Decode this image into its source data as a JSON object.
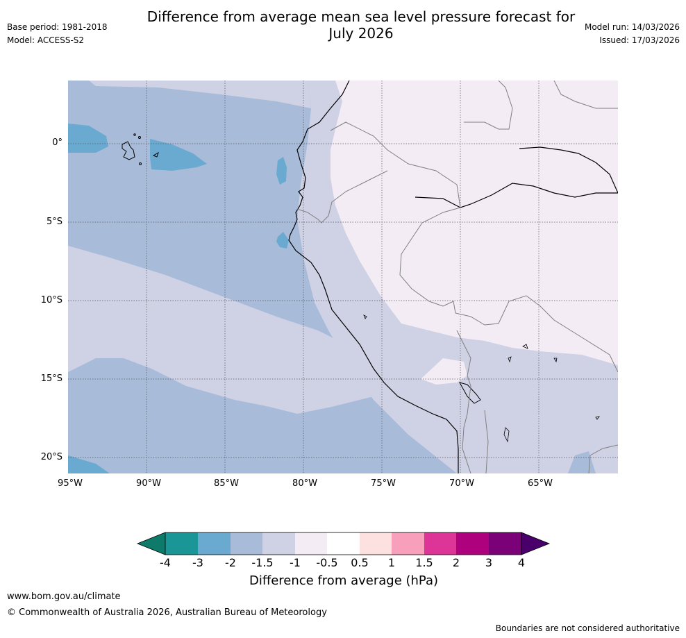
{
  "header": {
    "title_line1": "Difference from average mean sea level pressure forecast for",
    "title_line2": "July 2026",
    "base_period": "Base period: 1981-2018",
    "model": "Model: ACCESS-S2",
    "model_run": "Model run: 14/03/2026",
    "issued": "Issued: 17/03/2026"
  },
  "map": {
    "lat_labels": [
      "0°",
      "5°S",
      "10°S",
      "15°S",
      "20°S"
    ],
    "lon_labels": [
      "95°W",
      "90°W",
      "85°W",
      "80°W",
      "75°W",
      "70°W",
      "65°W"
    ],
    "colors": {
      "band_m2_m15": "#a8bbd9",
      "band_m15_m1": "#cfd1e5",
      "band_m1_m05": "#f3ecf5",
      "band_m3_m2": "#6aaad0",
      "coast": "#000000",
      "border": "#7f7f7f"
    }
  },
  "colorbar": {
    "title": "Difference from average (hPa)",
    "ticks": [
      "-4",
      "-3",
      "-2",
      "-1.5",
      "-1",
      "-0.5",
      "0.5",
      "1",
      "1.5",
      "2",
      "3",
      "4"
    ],
    "colors": [
      "#0e7a6a",
      "#1a9696",
      "#6aaad0",
      "#a8bbd9",
      "#cfd1e5",
      "#f3ecf5",
      "#ffffff",
      "#fde0e0",
      "#f8a0bb",
      "#dd3497",
      "#ae017e",
      "#7a0177",
      "#49006a"
    ]
  },
  "footer": {
    "url": "www.bom.gov.au/climate",
    "copyright": "© Commonwealth of Australia 2026, Australian Bureau of Meteorology",
    "boundaries": "Boundaries are not considered authoritative"
  }
}
